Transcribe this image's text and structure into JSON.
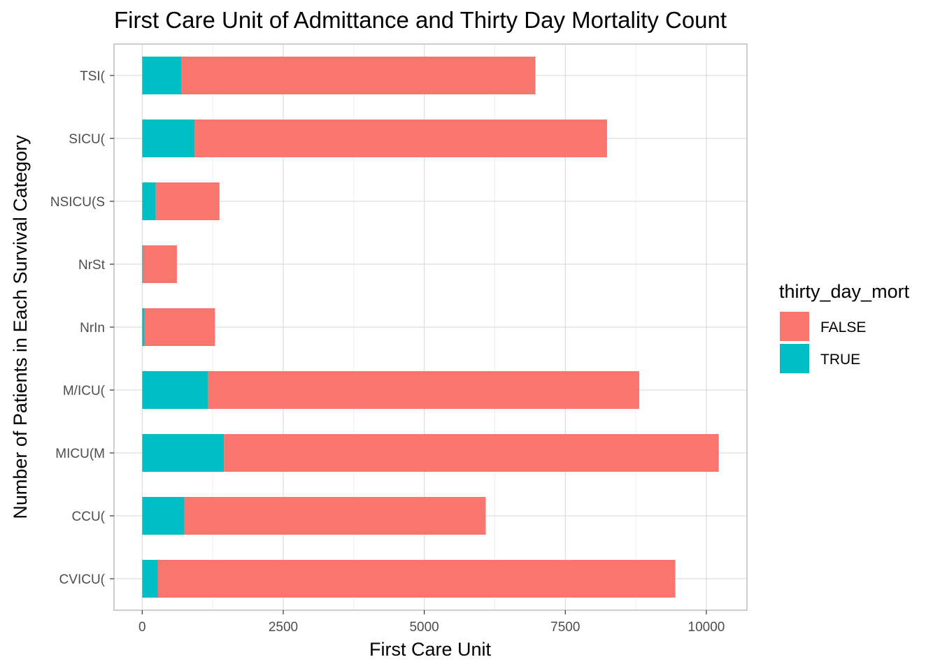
{
  "chart_data": {
    "type": "bar",
    "orientation": "horizontal",
    "stacked": true,
    "title": "First Care Unit of Admittance and Thirty Day Mortality Count",
    "xlabel": "First Care Unit",
    "ylabel": "Number of Patients in Each Survival Category",
    "categories": [
      "CVICU(",
      "CCU(",
      "MICU(M",
      "M/ICU(",
      "NrIn",
      "NrSt",
      "NSICU(S",
      "SICU(",
      "TSI("
    ],
    "series": [
      {
        "name": "FALSE",
        "color": "#F8766D",
        "values": [
          9170,
          5340,
          8770,
          7640,
          1250,
          600,
          1130,
          7310,
          6280
        ]
      },
      {
        "name": "TRUE",
        "color": "#00BFC4",
        "values": [
          280,
          750,
          1450,
          1170,
          40,
          15,
          240,
          930,
          690
        ]
      }
    ],
    "xlim": [
      -500,
      10720
    ],
    "xticks": [
      0,
      2500,
      5000,
      7500,
      10000
    ],
    "grid": true,
    "legend": {
      "title": "thirty_day_mort",
      "position": "right",
      "entries": [
        "FALSE",
        "TRUE"
      ]
    }
  }
}
